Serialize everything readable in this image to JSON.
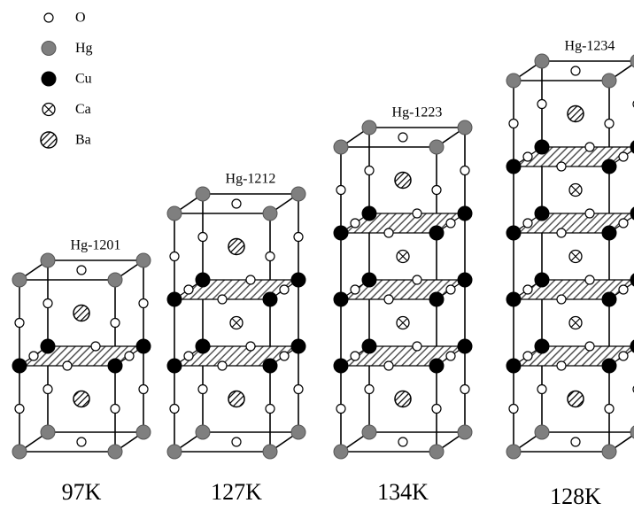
{
  "legend": [
    {
      "label": "O"
    },
    {
      "label": "Hg"
    },
    {
      "label": "Cu"
    },
    {
      "label": "Ca"
    },
    {
      "label": "Ba"
    }
  ],
  "structures": [
    {
      "name": "Hg-1201",
      "tc": "97K"
    },
    {
      "name": "Hg-1212",
      "tc": "127K"
    },
    {
      "name": "Hg-1223",
      "tc": "134K"
    },
    {
      "name": "Hg-1234",
      "tc": "128K"
    }
  ]
}
